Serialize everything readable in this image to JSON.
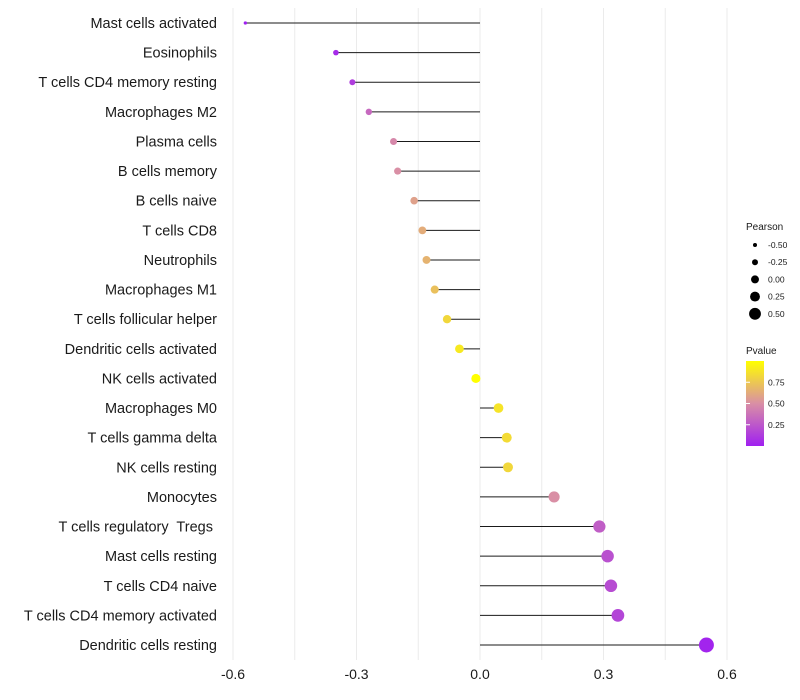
{
  "chart_data": {
    "type": "lollipop",
    "title": "",
    "xlabel": "",
    "ylabel": "",
    "xlim": [
      -0.62,
      0.62
    ],
    "x_ticks": [
      -0.6,
      -0.3,
      0.0,
      0.3,
      0.6
    ],
    "x_tick_labels": [
      "-0.6",
      "-0.3",
      "0.0",
      "0.3",
      "0.6"
    ],
    "grid": true,
    "categories": [
      "Mast cells activated",
      "Eosinophils",
      "T cells CD4 memory resting",
      "Macrophages M2",
      "Plasma cells",
      "B cells memory",
      "B cells naive",
      "T cells CD8",
      "Neutrophils",
      "Macrophages M1",
      "T cells follicular helper",
      "Dendritic cells activated",
      "NK cells activated",
      "Macrophages M0",
      "T cells gamma delta",
      "NK cells resting",
      "Monocytes",
      "T cells regulatory  Tregs ",
      "Mast cells resting",
      "T cells CD4 naive",
      "T cells CD4 memory activated",
      "Dendritic cells resting"
    ],
    "values": [
      -0.57,
      -0.35,
      -0.31,
      -0.27,
      -0.21,
      -0.2,
      -0.16,
      -0.14,
      -0.13,
      -0.11,
      -0.08,
      -0.05,
      -0.01,
      0.045,
      0.065,
      0.068,
      0.18,
      0.29,
      0.31,
      0.318,
      0.335,
      0.55
    ],
    "pvalues": [
      0.001,
      0.05,
      0.13,
      0.33,
      0.47,
      0.5,
      0.58,
      0.63,
      0.66,
      0.72,
      0.82,
      0.9,
      1.0,
      0.88,
      0.84,
      0.82,
      0.5,
      0.28,
      0.22,
      0.2,
      0.17,
      0.02
    ],
    "size_legend": {
      "title": "Pearson",
      "labels": [
        "-0.50",
        "-0.25",
        "0.00",
        "0.25",
        "0.50"
      ],
      "values": [
        -0.5,
        -0.25,
        0.0,
        0.25,
        0.5
      ]
    },
    "color_legend": {
      "title": "Pvalue",
      "labels": [
        "0.75",
        "0.50",
        "0.25"
      ],
      "values": [
        0.75,
        0.5,
        0.25
      ],
      "range": [
        0.0,
        1.0
      ],
      "low_color": "#a020f0",
      "mid_color": "#d98fa5",
      "high_color": "#ffff00"
    },
    "legend_position": "right"
  }
}
